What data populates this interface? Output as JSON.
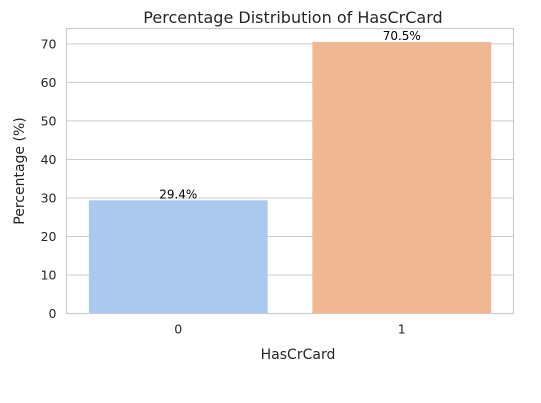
{
  "chart_data": {
    "type": "bar",
    "title": "Percentage Distribution of HasCrCard",
    "xlabel": "HasCrCard",
    "ylabel": "Percentage (%)",
    "categories": [
      "0",
      "1"
    ],
    "values": [
      29.4,
      70.5
    ],
    "value_labels": [
      "29.4%",
      "70.5%"
    ],
    "colors": [
      "#abc9ef",
      "#f0b892"
    ],
    "ylim": [
      0,
      74.0
    ],
    "yticks": [
      0,
      10,
      20,
      30,
      40,
      50,
      60,
      70
    ],
    "grid": true
  }
}
